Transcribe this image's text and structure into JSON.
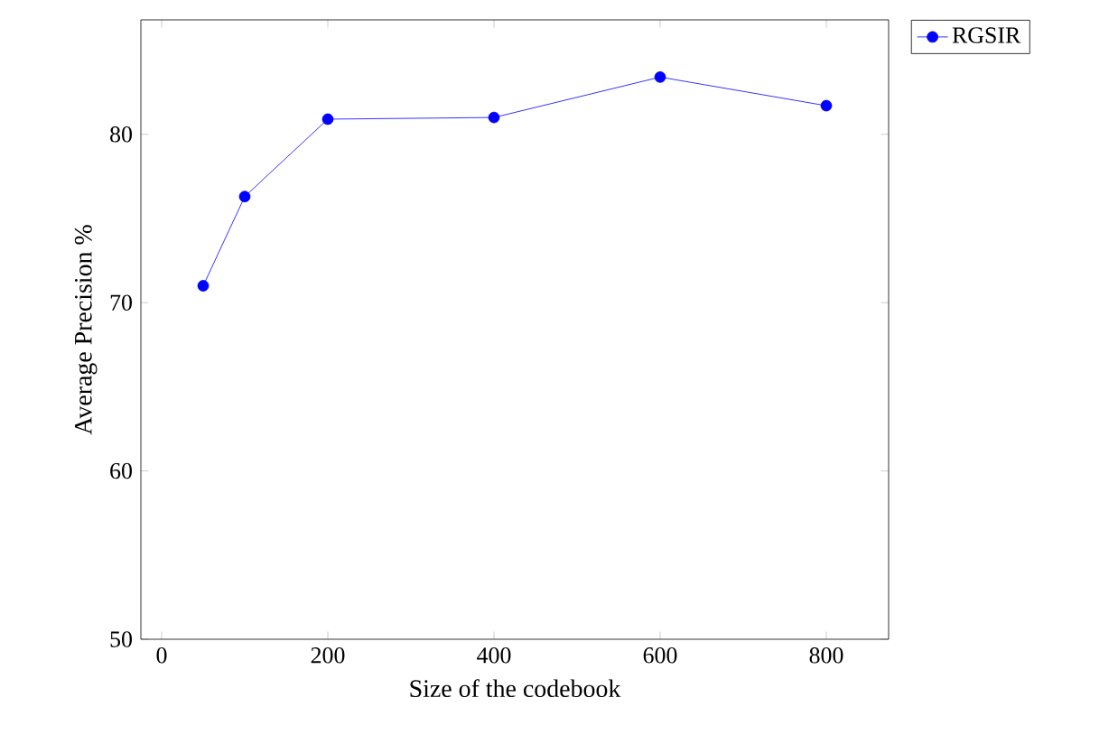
{
  "chart_data": {
    "type": "line",
    "xlabel": "Size of the codebook",
    "ylabel": "Average Precision %",
    "x": [
      50,
      100,
      200,
      400,
      600,
      800
    ],
    "series": [
      {
        "name": "RGSIR",
        "color": "#0000ff",
        "values": [
          71.0,
          76.3,
          80.9,
          81.0,
          83.4,
          81.7
        ]
      }
    ],
    "xlim": [
      -25,
      875
    ],
    "ylim": [
      50,
      86.8
    ],
    "xticks": [
      0,
      200,
      400,
      600,
      800
    ],
    "yticks": [
      50,
      60,
      70,
      80
    ],
    "marker": "circle",
    "line_style": "solid",
    "legend": "top right",
    "grid": false
  }
}
